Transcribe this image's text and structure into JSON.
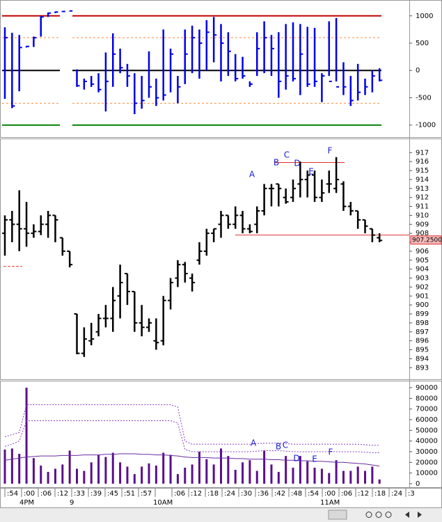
{
  "chart_data": [
    {
      "type": "range",
      "color": "#0000e6",
      "ylim": [
        -1220,
        1290
      ],
      "yticks": [
        1000,
        500,
        0,
        -500,
        -1000
      ],
      "levels": [
        {
          "value": 1000,
          "color": "#c00000"
        },
        {
          "value": 600,
          "color": "#ff8c3c"
        },
        {
          "value": 0,
          "color": "#000000"
        },
        {
          "value": -600,
          "color": "#ff8c3c"
        },
        {
          "value": -1000,
          "color": "#008000"
        }
      ],
      "high": [
        790,
        690,
        650,
        450,
        620,
        1000,
        1060,
        1080,
        1090,
        1090,
        20,
        -150,
        -100,
        -50,
        330,
        680,
        400,
        120,
        -50,
        -100,
        350,
        -150,
        750,
        400,
        -100,
        750,
        820,
        750,
        920,
        980,
        850,
        700,
        300,
        250,
        -200,
        700,
        900,
        650,
        700,
        850,
        880,
        850,
        800,
        780,
        -50,
        900,
        960,
        150,
        -100,
        120,
        -150,
        0,
        40
      ],
      "low": [
        -520,
        -690,
        -380,
        420,
        430,
        620,
        980,
        1050,
        1070,
        1080,
        -300,
        -350,
        -300,
        -400,
        -750,
        -300,
        -50,
        -300,
        -800,
        -700,
        -500,
        -650,
        -550,
        -400,
        -600,
        -250,
        -50,
        -150,
        0,
        150,
        -200,
        -100,
        -200,
        -150,
        -300,
        -100,
        -50,
        -100,
        -500,
        -350,
        -200,
        -450,
        -300,
        -300,
        -580,
        -100,
        -200,
        -450,
        -650,
        -550,
        -450,
        -400,
        -200
      ],
      "close": [
        600,
        -650,
        420,
        440,
        600,
        980,
        1050,
        1070,
        1080,
        1090,
        -280,
        -200,
        -250,
        -350,
        -200,
        300,
        50,
        -100,
        -600,
        -550,
        -300,
        -500,
        -450,
        300,
        -300,
        300,
        600,
        500,
        700,
        650,
        500,
        350,
        -150,
        -100,
        -250,
        400,
        600,
        400,
        -200,
        -100,
        -150,
        300,
        -250,
        -200,
        -100,
        -200,
        -300,
        -300,
        -550,
        -400,
        -300,
        -100,
        -180
      ]
    },
    {
      "type": "ohlc",
      "color": "#000000",
      "ylim": [
        891.7,
        918.5
      ],
      "yticks": [
        893,
        894,
        895,
        896,
        897,
        898,
        899,
        900,
        901,
        902,
        903,
        904,
        905,
        906,
        907,
        908,
        909,
        910,
        911,
        912,
        913,
        914,
        915,
        916,
        917
      ],
      "open": [
        908,
        909.5,
        909,
        908.5,
        908,
        908.2,
        909,
        910,
        907.5,
        906,
        899,
        894.6,
        896,
        897,
        898.5,
        898.5,
        901,
        903.5,
        901.5,
        898,
        897.5,
        896,
        896,
        900.5,
        903,
        904.5,
        903,
        905,
        906,
        908,
        909,
        910,
        909,
        910,
        908.5,
        909,
        910.5,
        913,
        913.5,
        912,
        912,
        913.5,
        914,
        914.5,
        912,
        913.5,
        913,
        913.5,
        911,
        910.5,
        909.5,
        908.5,
        907.5
      ],
      "high": [
        910,
        910.5,
        912.8,
        911.5,
        909,
        910,
        910.5,
        910,
        907.5,
        906,
        899,
        897.5,
        898,
        899,
        900,
        902,
        904.5,
        903.5,
        901.5,
        900,
        898.5,
        898.5,
        901,
        903,
        905,
        904.8,
        903.5,
        907,
        908.5,
        908.5,
        910.5,
        910,
        911,
        910.5,
        909,
        911,
        913.5,
        913.5,
        913.5,
        913,
        914,
        916,
        915,
        915,
        914,
        915,
        916.5,
        913.8,
        911.5,
        910.5,
        909.5,
        908.5,
        908
      ],
      "low": [
        905.5,
        907,
        906,
        906.5,
        907.5,
        907.8,
        907.5,
        907,
        905.5,
        904.2,
        894.5,
        894.2,
        895.5,
        896.5,
        897.5,
        897,
        898.5,
        900,
        897,
        896.5,
        897,
        895,
        895.5,
        899.5,
        902,
        902.5,
        901.5,
        904.5,
        905.5,
        907,
        907.5,
        908.5,
        908.5,
        908,
        908,
        908,
        910,
        911,
        911,
        911.3,
        911.5,
        912,
        912,
        911.5,
        911.5,
        912.5,
        912.5,
        910.5,
        910,
        908.5,
        908,
        907,
        907
      ],
      "close": [
        909.5,
        909,
        908.5,
        908,
        908.2,
        909,
        910,
        909.5,
        906,
        904.5,
        894.6,
        896.2,
        896.2,
        898.5,
        898.5,
        900.5,
        902.5,
        901.5,
        898,
        897.5,
        898,
        895.8,
        900.5,
        902.5,
        904.5,
        903.5,
        902.5,
        906,
        908,
        908.5,
        910,
        909,
        910,
        908.5,
        908.2,
        910.5,
        913,
        913,
        913,
        911.5,
        913,
        914,
        914.5,
        912,
        912.5,
        913.5,
        914,
        911,
        910.5,
        909.5,
        908.8,
        907.8,
        907.2
      ],
      "last": {
        "value": 907.25,
        "label": "907.2500"
      },
      "lines": [
        {
          "value": 915.9,
          "color": "#e03030"
        },
        {
          "value": 907.8,
          "color": "#e03030"
        },
        {
          "value": 904.3,
          "color": "#e03030"
        }
      ],
      "annotations": [
        "A",
        "B",
        "C",
        "D",
        "E",
        "F"
      ]
    },
    {
      "type": "bar",
      "color": "#5a0f8c",
      "ylim": [
        -3300,
        95900
      ],
      "yticks": [
        0,
        10000,
        20000,
        30000,
        40000,
        50000,
        60000,
        70000,
        80000,
        90000
      ],
      "values": [
        32000,
        33000,
        28000,
        90000,
        24000,
        17000,
        11000,
        14000,
        18000,
        31000,
        14000,
        12000,
        20000,
        27000,
        25000,
        29000,
        20000,
        16000,
        9000,
        16000,
        19000,
        17000,
        29000,
        27000,
        9000,
        15000,
        18000,
        30000,
        23000,
        18000,
        33000,
        26000,
        13000,
        20000,
        22000,
        12000,
        31000,
        18000,
        11000,
        26000,
        15000,
        26000,
        21000,
        15000,
        14000,
        10000,
        22000,
        12000,
        12000,
        16000,
        12000,
        16000,
        4000
      ],
      "bands": [
        {
          "color": "#8a3cc8",
          "values": [
            44000,
            46000,
            48000,
            74000,
            74000,
            74000,
            74000,
            74000,
            74000,
            74000,
            74000,
            74000,
            74000,
            74000,
            74000,
            74000,
            74000,
            74000,
            74000,
            74000,
            74000,
            74000,
            74000,
            74000,
            72000,
            40000,
            37000,
            37000,
            37000,
            37000,
            37000,
            37000,
            37000,
            37000,
            37000,
            37500,
            38000,
            38000,
            38000,
            37500,
            37000,
            37000,
            37000,
            37000,
            37000,
            37000,
            37000,
            37000,
            37000,
            37000,
            36500,
            36000,
            36000
          ]
        },
        {
          "color": "#8a3cc8",
          "values": [
            35000,
            37000,
            40000,
            59000,
            59000,
            59000,
            59000,
            59000,
            59000,
            59000,
            59000,
            59000,
            59000,
            59000,
            59000,
            59000,
            59000,
            59000,
            59000,
            59000,
            59000,
            59000,
            59000,
            59000,
            57000,
            32000,
            30000,
            30000,
            30000,
            30000,
            30000,
            30000,
            30000,
            30000,
            30000,
            30500,
            31000,
            31000,
            31000,
            30500,
            30000,
            30000,
            30000,
            30000,
            30000,
            30000,
            30000,
            30000,
            30000,
            30000,
            29500,
            29000,
            29000
          ]
        },
        {
          "color": "#6a2a9e",
          "values": [
            22000,
            23000,
            24000,
            25000,
            25500,
            26000,
            26000,
            26000,
            26500,
            26500,
            26500,
            27000,
            27000,
            27000,
            27500,
            27500,
            28000,
            28000,
            28000,
            27500,
            27500,
            27000,
            27000,
            26500,
            26000,
            25000,
            24500,
            24500,
            24500,
            24000,
            24000,
            24000,
            23500,
            23500,
            23000,
            23000,
            23000,
            22500,
            22500,
            22000,
            22000,
            21500,
            21500,
            21000,
            21000,
            20500,
            20000,
            20000,
            19500,
            19000,
            18500,
            17500,
            16500
          ]
        }
      ],
      "annotations": [
        "A",
        "B",
        "C",
        "D",
        "E",
        "F"
      ]
    }
  ],
  "x_axis": {
    "labels": [
      ":54",
      ":00",
      ":06",
      ":12",
      ":33",
      ":39",
      ":45",
      ":51",
      ":57",
      null,
      ":06",
      ":12",
      ":18",
      ":24",
      ":30",
      ":36",
      ":42",
      ":48",
      ":54",
      ":00",
      ":06",
      ":12",
      ":18",
      ":24",
      ":3"
    ],
    "sublabels": [
      null,
      "4PM",
      null,
      null,
      "9",
      null,
      null,
      null,
      null,
      "10AM",
      null,
      null,
      null,
      null,
      null,
      null,
      null,
      null,
      null,
      "11AM",
      null,
      null,
      null,
      null,
      null
    ]
  }
}
